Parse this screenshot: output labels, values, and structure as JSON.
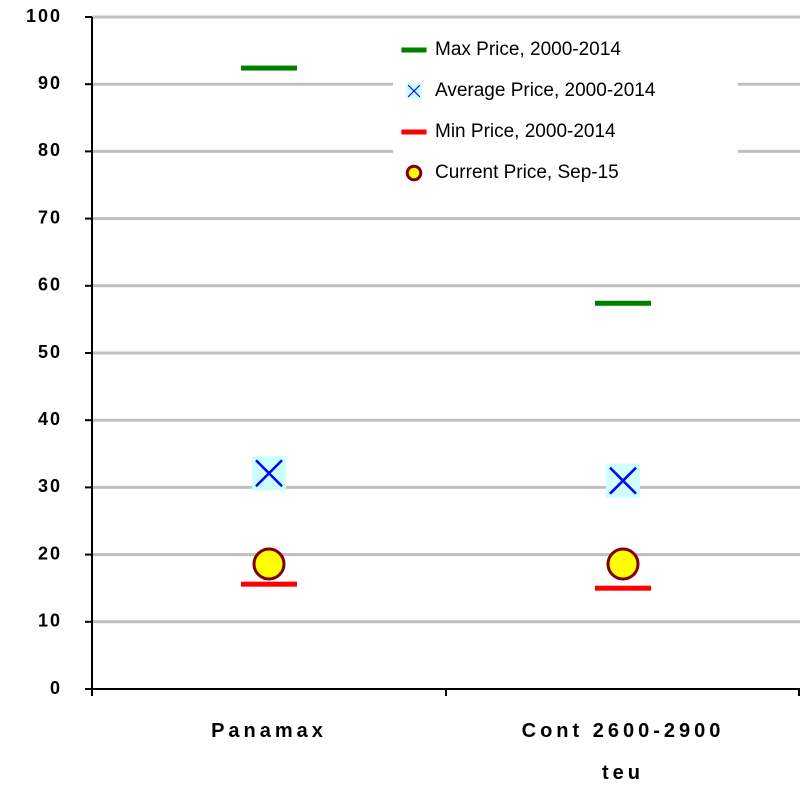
{
  "chart_data": {
    "type": "marker",
    "categories": [
      "Panamax",
      "Cont 2600-2900 teu"
    ],
    "ylim": [
      0,
      100
    ],
    "yticks": [
      0,
      10,
      20,
      30,
      40,
      50,
      60,
      70,
      80,
      90,
      100
    ],
    "grid": true,
    "legend": "top-right",
    "series": [
      {
        "name": "Max Price, 2000-2014",
        "color": "#008000",
        "marker": "dash",
        "values": [
          92.4,
          57.4
        ]
      },
      {
        "name": "Average Price, 2000-2014",
        "color": "#0000ff",
        "marker": "x",
        "values": [
          32.1,
          31.0
        ]
      },
      {
        "name": "Min Price, 2000-2014",
        "color": "#ff0000",
        "marker": "dash",
        "values": [
          15.6,
          15.0
        ]
      },
      {
        "name": "Current Price, Sep-15",
        "color": "#ffff00",
        "marker": "circle",
        "values": [
          18.6,
          18.6
        ]
      }
    ]
  }
}
